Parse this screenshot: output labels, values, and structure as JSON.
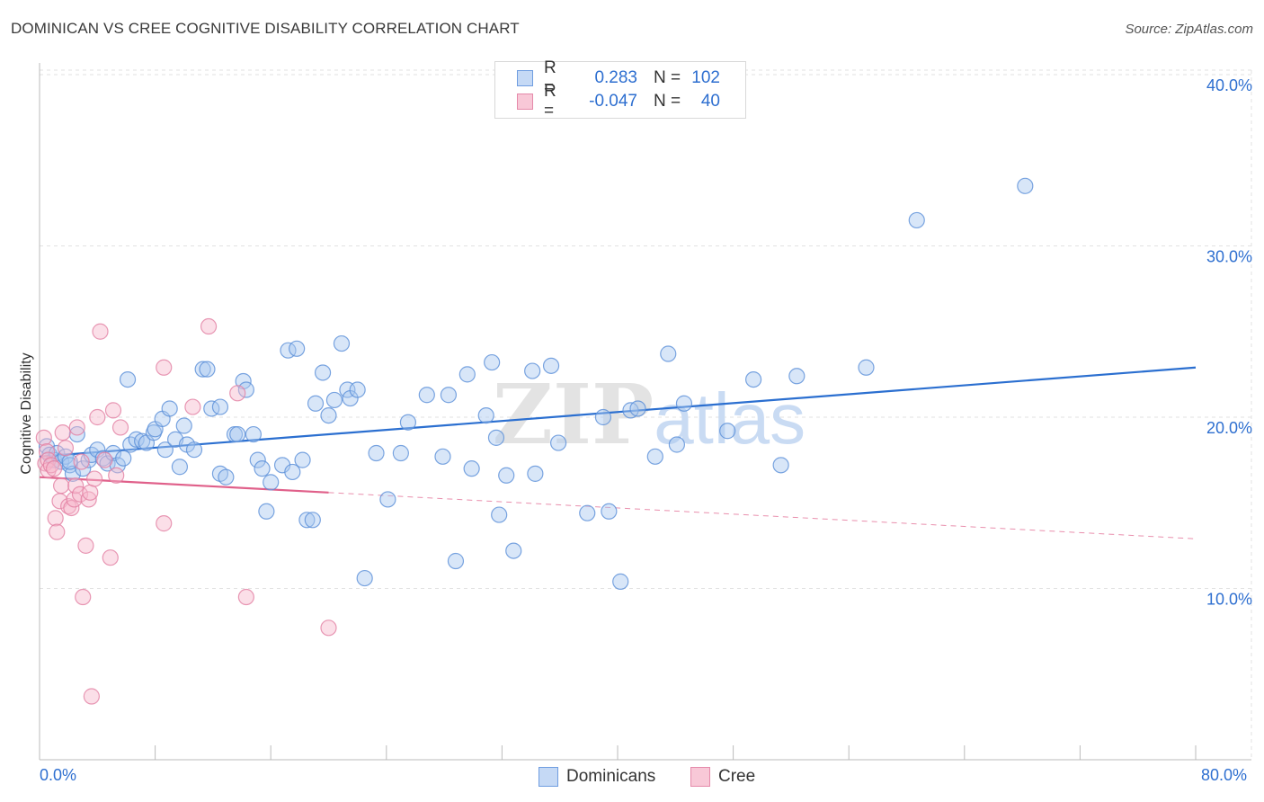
{
  "header": {
    "title": "DOMINICAN VS CREE COGNITIVE DISABILITY CORRELATION CHART",
    "source": "Source: ZipAtlas.com"
  },
  "legend_top": {
    "rows": [
      {
        "r_label": "R =",
        "r_value": "0.283",
        "n_label": "N =",
        "n_value": "102"
      },
      {
        "r_label": "R =",
        "r_value": "-0.047",
        "n_label": "N =",
        "n_value": "40"
      }
    ]
  },
  "colors": {
    "dominicans_fill": "#a9c8f0",
    "dominicans_stroke": "#5a8fd8",
    "dominicans_line": "#2b6fd0",
    "cree_fill": "#f6b8cb",
    "cree_stroke": "#e27fa2",
    "cree_line": "#e0608a",
    "axis_text": "#2e6fd0",
    "grid": "#e2e2e2"
  },
  "chart_data": {
    "type": "scatter",
    "title": "DOMINICAN VS CREE COGNITIVE DISABILITY CORRELATION CHART",
    "xlabel": "",
    "ylabel": "Cognitive Disability",
    "xlim": [
      0,
      80
    ],
    "ylim": [
      0,
      41
    ],
    "x_tick_labels": [
      "0.0%",
      "80.0%"
    ],
    "y_ticks": [
      10,
      20,
      30,
      40
    ],
    "y_tick_labels": [
      "10.0%",
      "20.0%",
      "30.0%",
      "40.0%"
    ],
    "grid": true,
    "legend_position": "top-center",
    "watermark": "ZIPatlas",
    "series": [
      {
        "name": "Dominicans",
        "r": 0.283,
        "n": 102,
        "trend": {
          "x": [
            0,
            80
          ],
          "y": [
            17.7,
            22.9
          ],
          "style": "solid"
        },
        "points": [
          [
            0.5,
            18.3
          ],
          [
            0.7,
            17.8
          ],
          [
            1.0,
            17.5
          ],
          [
            1.2,
            17.9
          ],
          [
            1.5,
            17.4
          ],
          [
            1.8,
            17.7
          ],
          [
            2.1,
            17.2
          ],
          [
            2.3,
            16.7
          ],
          [
            2.6,
            19.0
          ],
          [
            3.0,
            17.0
          ],
          [
            3.4,
            17.5
          ],
          [
            3.6,
            17.8
          ],
          [
            4.0,
            18.1
          ],
          [
            4.4,
            17.6
          ],
          [
            4.7,
            17.3
          ],
          [
            5.1,
            17.9
          ],
          [
            5.4,
            17.2
          ],
          [
            5.8,
            17.6
          ],
          [
            6.1,
            22.2
          ],
          [
            6.3,
            18.4
          ],
          [
            6.7,
            18.7
          ],
          [
            7.1,
            18.6
          ],
          [
            7.4,
            18.5
          ],
          [
            7.9,
            19.1
          ],
          [
            8.0,
            19.3
          ],
          [
            8.5,
            19.9
          ],
          [
            8.7,
            18.1
          ],
          [
            9.0,
            20.5
          ],
          [
            9.4,
            18.7
          ],
          [
            9.7,
            17.1
          ],
          [
            10.0,
            19.5
          ],
          [
            10.2,
            18.4
          ],
          [
            10.7,
            18.1
          ],
          [
            11.3,
            22.8
          ],
          [
            11.6,
            22.8
          ],
          [
            11.9,
            20.5
          ],
          [
            12.5,
            16.7
          ],
          [
            12.9,
            16.5
          ],
          [
            12.5,
            20.6
          ],
          [
            13.5,
            19.0
          ],
          [
            13.7,
            19.0
          ],
          [
            14.1,
            22.1
          ],
          [
            14.3,
            21.6
          ],
          [
            14.8,
            19.0
          ],
          [
            15.1,
            17.5
          ],
          [
            15.4,
            17.0
          ],
          [
            15.7,
            14.5
          ],
          [
            16.0,
            16.2
          ],
          [
            16.8,
            17.2
          ],
          [
            17.2,
            23.9
          ],
          [
            17.5,
            16.8
          ],
          [
            17.8,
            24.0
          ],
          [
            18.2,
            17.5
          ],
          [
            18.5,
            14.0
          ],
          [
            18.9,
            14.0
          ],
          [
            19.1,
            20.8
          ],
          [
            19.6,
            22.6
          ],
          [
            20.0,
            20.1
          ],
          [
            20.4,
            21.0
          ],
          [
            20.9,
            24.3
          ],
          [
            21.3,
            21.6
          ],
          [
            21.5,
            21.1
          ],
          [
            22.0,
            21.6
          ],
          [
            22.5,
            10.6
          ],
          [
            23.3,
            17.9
          ],
          [
            24.1,
            15.2
          ],
          [
            25.0,
            17.9
          ],
          [
            25.5,
            19.7
          ],
          [
            26.8,
            21.3
          ],
          [
            27.9,
            17.7
          ],
          [
            28.3,
            21.3
          ],
          [
            28.8,
            11.6
          ],
          [
            29.6,
            22.5
          ],
          [
            29.9,
            17.0
          ],
          [
            30.9,
            20.1
          ],
          [
            31.3,
            23.2
          ],
          [
            31.6,
            18.8
          ],
          [
            31.8,
            14.3
          ],
          [
            32.3,
            16.6
          ],
          [
            32.8,
            12.2
          ],
          [
            34.1,
            22.7
          ],
          [
            34.3,
            16.7
          ],
          [
            35.4,
            23.0
          ],
          [
            35.9,
            18.5
          ],
          [
            37.9,
            14.4
          ],
          [
            39.0,
            20.0
          ],
          [
            39.4,
            14.5
          ],
          [
            40.2,
            10.4
          ],
          [
            40.9,
            20.4
          ],
          [
            41.4,
            20.5
          ],
          [
            42.6,
            17.7
          ],
          [
            43.5,
            23.7
          ],
          [
            44.1,
            18.4
          ],
          [
            44.6,
            20.8
          ],
          [
            47.6,
            19.2
          ],
          [
            49.4,
            22.2
          ],
          [
            51.3,
            17.2
          ],
          [
            52.4,
            22.4
          ],
          [
            57.2,
            22.9
          ],
          [
            60.7,
            31.5
          ],
          [
            68.2,
            33.5
          ],
          [
            2.1,
            17.4
          ]
        ]
      },
      {
        "name": "Cree",
        "r": -0.047,
        "n": 40,
        "trend": {
          "x": [
            0,
            20
          ],
          "y": [
            16.5,
            15.6
          ],
          "style": "solid"
        },
        "trend_extension": {
          "x": [
            20,
            80
          ],
          "y": [
            15.6,
            12.9
          ],
          "style": "dashed"
        },
        "points": [
          [
            0.3,
            18.8
          ],
          [
            0.4,
            17.3
          ],
          [
            0.5,
            18.0
          ],
          [
            0.6,
            17.5
          ],
          [
            0.6,
            16.9
          ],
          [
            0.8,
            17.2
          ],
          [
            1.0,
            17.0
          ],
          [
            1.1,
            14.1
          ],
          [
            1.2,
            13.3
          ],
          [
            1.4,
            15.1
          ],
          [
            1.5,
            16.0
          ],
          [
            1.6,
            19.1
          ],
          [
            1.8,
            18.2
          ],
          [
            2.0,
            14.8
          ],
          [
            2.2,
            14.7
          ],
          [
            2.4,
            15.2
          ],
          [
            2.5,
            16.0
          ],
          [
            2.6,
            19.4
          ],
          [
            2.8,
            15.5
          ],
          [
            2.9,
            17.4
          ],
          [
            3.0,
            9.5
          ],
          [
            3.2,
            12.5
          ],
          [
            3.4,
            15.2
          ],
          [
            3.5,
            15.6
          ],
          [
            3.6,
            3.7
          ],
          [
            3.8,
            16.4
          ],
          [
            4.0,
            20.0
          ],
          [
            4.2,
            25.0
          ],
          [
            4.5,
            17.5
          ],
          [
            4.9,
            11.8
          ],
          [
            5.1,
            20.4
          ],
          [
            5.3,
            16.6
          ],
          [
            5.6,
            19.4
          ],
          [
            8.6,
            22.9
          ],
          [
            8.6,
            13.8
          ],
          [
            10.6,
            20.6
          ],
          [
            11.7,
            25.3
          ],
          [
            13.7,
            21.4
          ],
          [
            14.3,
            9.5
          ],
          [
            20.0,
            7.7
          ]
        ]
      }
    ]
  },
  "bottom_legend": {
    "items": [
      {
        "label": "Dominicans"
      },
      {
        "label": "Cree"
      }
    ]
  }
}
